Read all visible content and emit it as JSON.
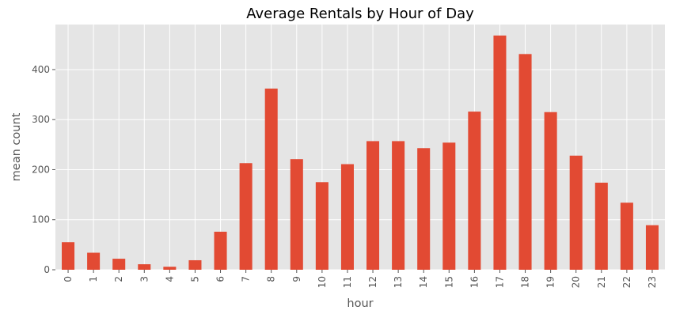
{
  "chart_data": {
    "type": "bar",
    "title": "Average Rentals by Hour of Day",
    "xlabel": "hour",
    "ylabel": "mean count",
    "categories": [
      "0",
      "1",
      "2",
      "3",
      "4",
      "5",
      "6",
      "7",
      "8",
      "9",
      "10",
      "11",
      "12",
      "13",
      "14",
      "15",
      "16",
      "17",
      "18",
      "19",
      "20",
      "21",
      "22",
      "23"
    ],
    "values": [
      55,
      34,
      22,
      11,
      6,
      19,
      76,
      213,
      362,
      221,
      175,
      211,
      257,
      257,
      243,
      254,
      316,
      468,
      431,
      315,
      228,
      174,
      134,
      89
    ],
    "ylim": [
      0,
      490
    ],
    "yticks": [
      0,
      100,
      200,
      300,
      400
    ],
    "grid": true,
    "legend": "none",
    "bar_color": "#E24A33",
    "plot_background": "#E5E5E5",
    "grid_color": "#FFFFFF"
  }
}
